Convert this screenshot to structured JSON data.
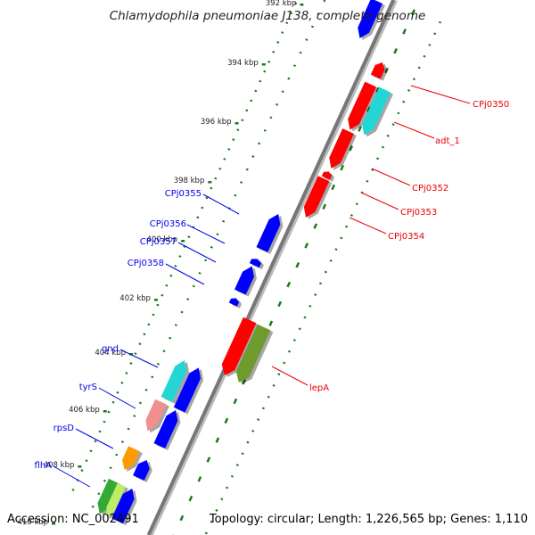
{
  "title": "Chlamydophila pneumoniae J138, complete genome",
  "accession": "Accession: NC_002491",
  "topology": "Topology: circular; Length: 1,226,565 bp; Genes: 1,110",
  "ticks": [
    "392 kbp",
    "394 kbp",
    "396 kbp",
    "398 kbp",
    "400 kbp",
    "402 kbp",
    "404 kbp",
    "406 kbp",
    "408 kbp",
    "410 kbp"
  ],
  "genes_left": [
    {
      "label": "CPj0355",
      "color": "#0000ee"
    },
    {
      "label": "CPj0356",
      "color": "#0000ee"
    },
    {
      "label": "CPj0357",
      "color": "#0000ee"
    },
    {
      "label": "CPj0358",
      "color": "#0000ee"
    },
    {
      "label": "gnd",
      "color": "#0000ee"
    },
    {
      "label": "tyrS",
      "color": "#0000ee"
    },
    {
      "label": "rpsD",
      "color": "#0000ee"
    },
    {
      "label": "flhA",
      "color": "#0000ee"
    }
  ],
  "genes_right": [
    {
      "label": "CPj0350",
      "color": "#ee0000"
    },
    {
      "label": "adt_1",
      "color": "#ee0000"
    },
    {
      "label": "CPj0352",
      "color": "#ee0000"
    },
    {
      "label": "CPj0353",
      "color": "#ee0000"
    },
    {
      "label": "CPj0354",
      "color": "#ee0000"
    },
    {
      "label": "lepA",
      "color": "#ee0000"
    }
  ],
  "colors": {
    "backbone": "#777777",
    "tick_green": "#1a7a1a",
    "blue": "#0000ff",
    "red": "#ff0000",
    "cyan": "#22d6d6",
    "olive": "#6f9a2e",
    "pink": "#ef8f8f",
    "orange": "#ff9900",
    "green": "#33aa33",
    "yellowgreen": "#bbee66"
  }
}
